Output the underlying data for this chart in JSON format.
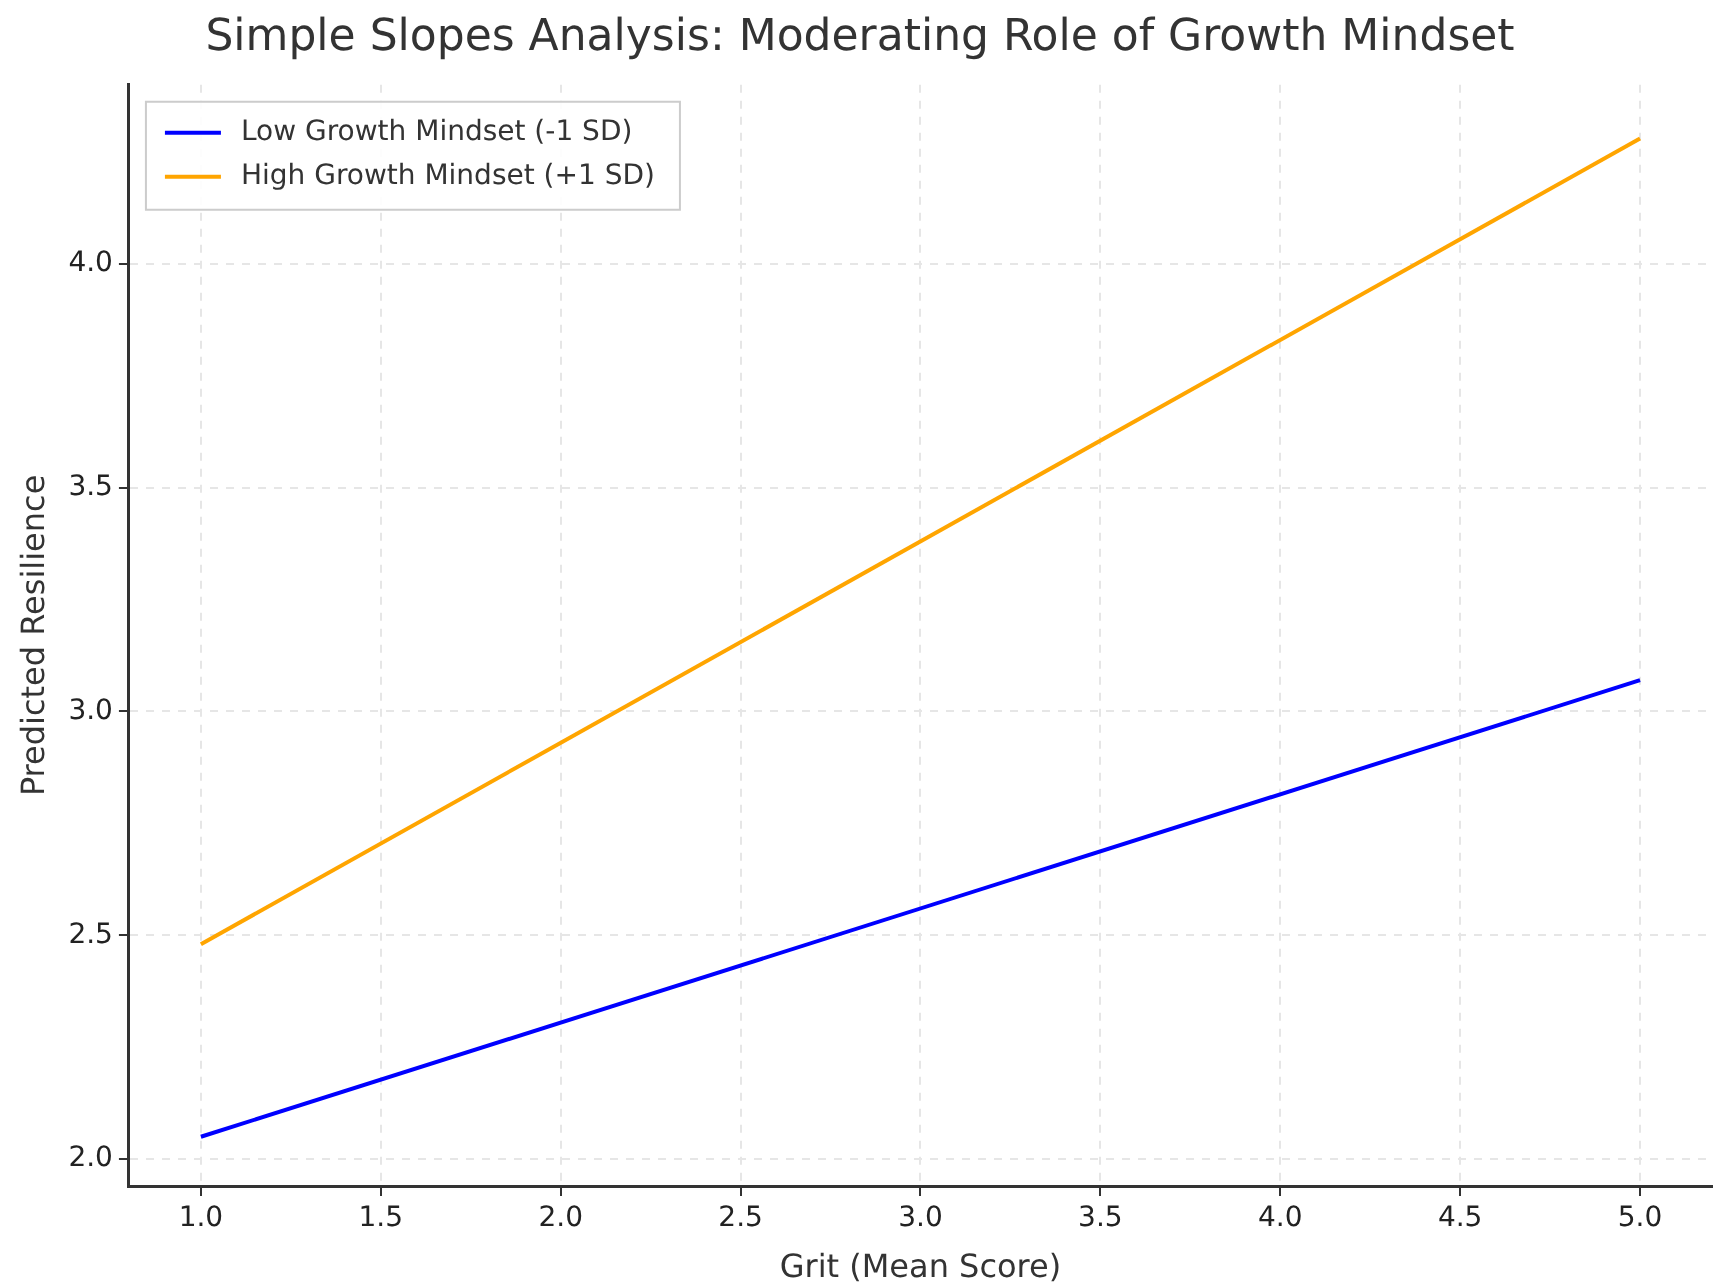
{
  "chart_data": {
    "type": "line",
    "title": "Simple Slopes Analysis: Moderating Role of Growth Mindset",
    "xlabel": "Grit (Mean Score)",
    "ylabel": "Predicted Resilience",
    "x": [
      1,
      5
    ],
    "series": [
      {
        "name": "Low Growth Mindset (-1 SD)",
        "color": "#0000ff",
        "values": [
          2.05,
          3.07
        ]
      },
      {
        "name": "High Growth Mindset (+1 SD)",
        "color": "#ffa500",
        "values": [
          2.48,
          4.28
        ]
      }
    ],
    "xlim": [
      0.8,
      5.2
    ],
    "ylim": [
      1.94,
      4.4
    ],
    "xticks": [
      {
        "value": 1,
        "label": "1.0"
      },
      {
        "value": 1.5,
        "label": "1.5"
      },
      {
        "value": 2,
        "label": "2.0"
      },
      {
        "value": 2.5,
        "label": "2.5"
      },
      {
        "value": 3,
        "label": "3.0"
      },
      {
        "value": 3.5,
        "label": "3.5"
      },
      {
        "value": 4,
        "label": "4.0"
      },
      {
        "value": 4.5,
        "label": "4.5"
      },
      {
        "value": 5,
        "label": "5.0"
      }
    ],
    "yticks": [
      {
        "value": 2,
        "label": "2.0"
      },
      {
        "value": 2.5,
        "label": "2.5"
      },
      {
        "value": 3,
        "label": "3.0"
      },
      {
        "value": 3.5,
        "label": "3.5"
      },
      {
        "value": 4,
        "label": "4.0"
      }
    ],
    "grid": true,
    "legend": "top left",
    "marker": "none",
    "line_style": "solid"
  }
}
